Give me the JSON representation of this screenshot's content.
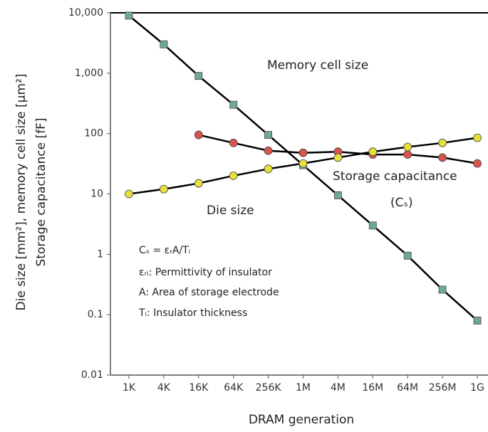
{
  "chart_data": {
    "type": "line",
    "x_label": "DRAM generation",
    "y_label": [
      "Die size [mm²], memory cell size [μm²]",
      "Storage capacitance [fF]"
    ],
    "categories": [
      "1K",
      "4K",
      "16K",
      "64K",
      "256K",
      "1M",
      "4M",
      "16M",
      "64M",
      "256M",
      "1G"
    ],
    "log_scale": true,
    "ylim": [
      0.01,
      10000
    ],
    "yticks": [
      0.01,
      0.1,
      1,
      10,
      100,
      {
        "value": 1000,
        "label": "1,000"
      },
      {
        "value": 10000,
        "label": "10,000"
      }
    ],
    "line_color": "#000000",
    "series": [
      {
        "name": "Memory cell size",
        "color": "#6fa89a",
        "marker": "square",
        "values": [
          9000,
          3000,
          900,
          300,
          95,
          30,
          9.5,
          3,
          0.95,
          0.26,
          0.08
        ]
      },
      {
        "name": "Storage capacitance",
        "color": "#d9534f",
        "marker": "circle",
        "values": [
          null,
          null,
          95,
          70,
          52,
          48,
          50,
          45,
          45,
          40,
          32
        ]
      },
      {
        "name": "Die size",
        "color": "#e6df3c",
        "marker": "circle",
        "values": [
          10,
          12,
          15,
          20,
          26,
          32,
          40,
          50,
          60,
          70,
          85
        ]
      }
    ],
    "annotations": [
      "(Cₛ)",
      "Cₛ = εᵣA/Tᵢ",
      "εᵣᵢ: Permittivity of insulator",
      "A: Area of storage electrode",
      "Tᵢ: Insulator thickness"
    ]
  }
}
